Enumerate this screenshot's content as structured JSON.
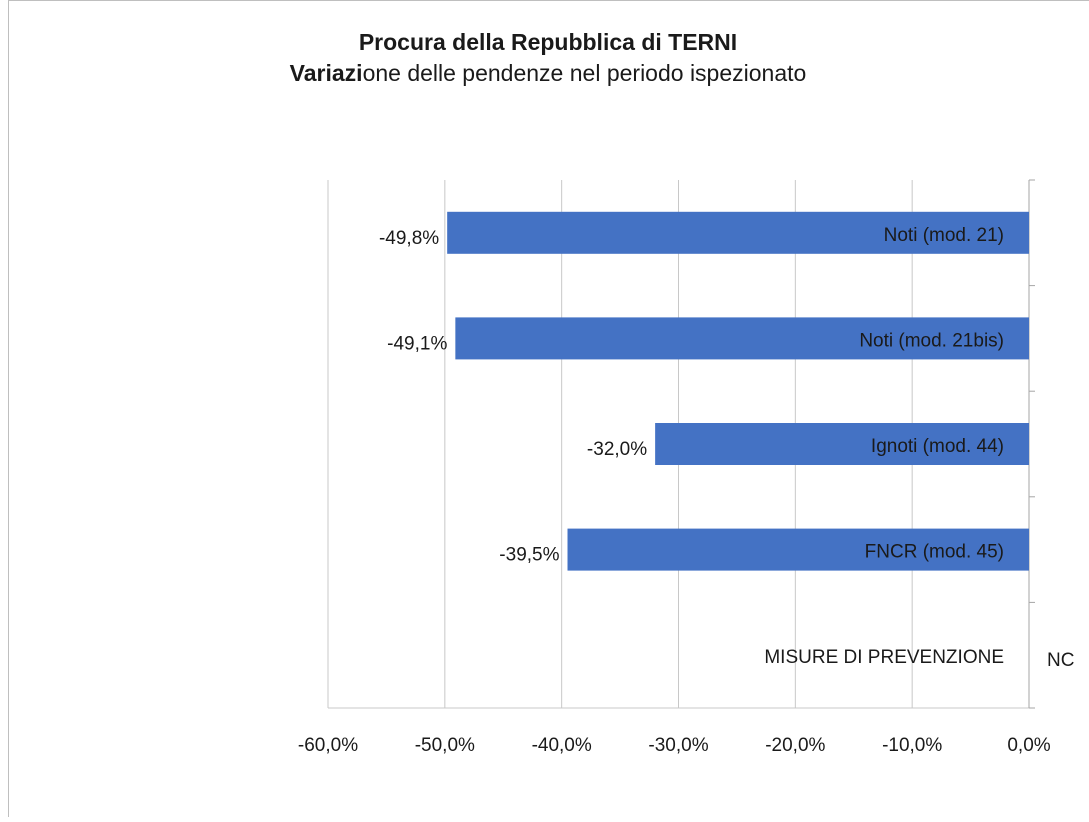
{
  "chart_data": {
    "type": "hbar",
    "title": "Procura della Repubblica di TERNI",
    "subtitle": {
      "bold": "Variazi",
      "rest": "one delle pendenze nel periodo ispezionato"
    },
    "categories": [
      "Noti (mod. 21)",
      "Noti (mod. 21bis)",
      "Ignoti (mod. 44)",
      "FNCR (mod. 45)",
      "MISURE DI PREVENZIONE"
    ],
    "values": [
      -49.8,
      -49.1,
      -32.0,
      -39.5,
      null
    ],
    "value_labels": [
      "-49,8%",
      "-49,1%",
      "-32,0%",
      "-39,5%",
      "NC"
    ],
    "color": "#4472c4",
    "xlim": [
      -60,
      0
    ],
    "xticks": [
      {
        "value": -60,
        "label": "-60,0%"
      },
      {
        "value": -50,
        "label": "-50,0%"
      },
      {
        "value": -40,
        "label": "-40,0%"
      },
      {
        "value": -30,
        "label": "-30,0%"
      },
      {
        "value": -20,
        "label": "-20,0%"
      },
      {
        "value": -10,
        "label": "-10,0%"
      },
      {
        "value": 0,
        "label": "0,0%"
      }
    ],
    "grid": true
  }
}
